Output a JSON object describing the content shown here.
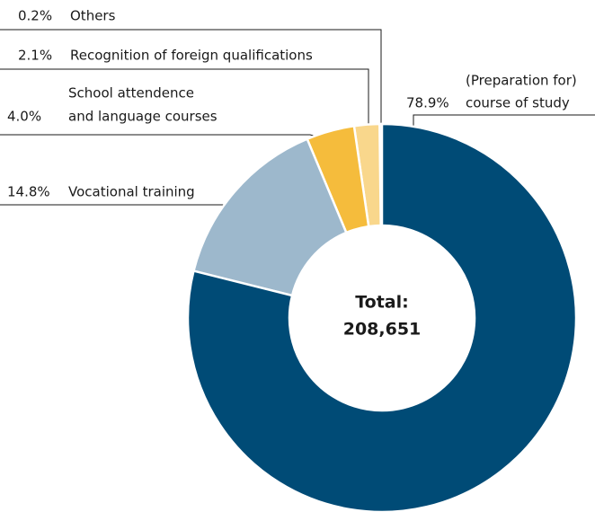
{
  "chart_data": {
    "type": "donut",
    "categories": [
      [
        "(Preparation for)",
        "course of study"
      ],
      [
        "Vocational training"
      ],
      [
        "School attendence",
        "and language courses"
      ],
      [
        "Recognition of foreign qualifications"
      ],
      [
        "Others"
      ]
    ],
    "values": [
      78.9,
      14.8,
      4.0,
      2.1,
      0.2
    ],
    "value_labels": [
      "78.9%",
      "14.8%",
      "4.0%",
      "2.1%",
      "0.2%"
    ],
    "colors": [
      "#004b76",
      "#9db8cc",
      "#f5bc3c",
      "#f9d78c",
      "#c8c8c8"
    ],
    "center_text": "Total:",
    "total": {
      "value": 208651,
      "label": "208,651"
    }
  }
}
